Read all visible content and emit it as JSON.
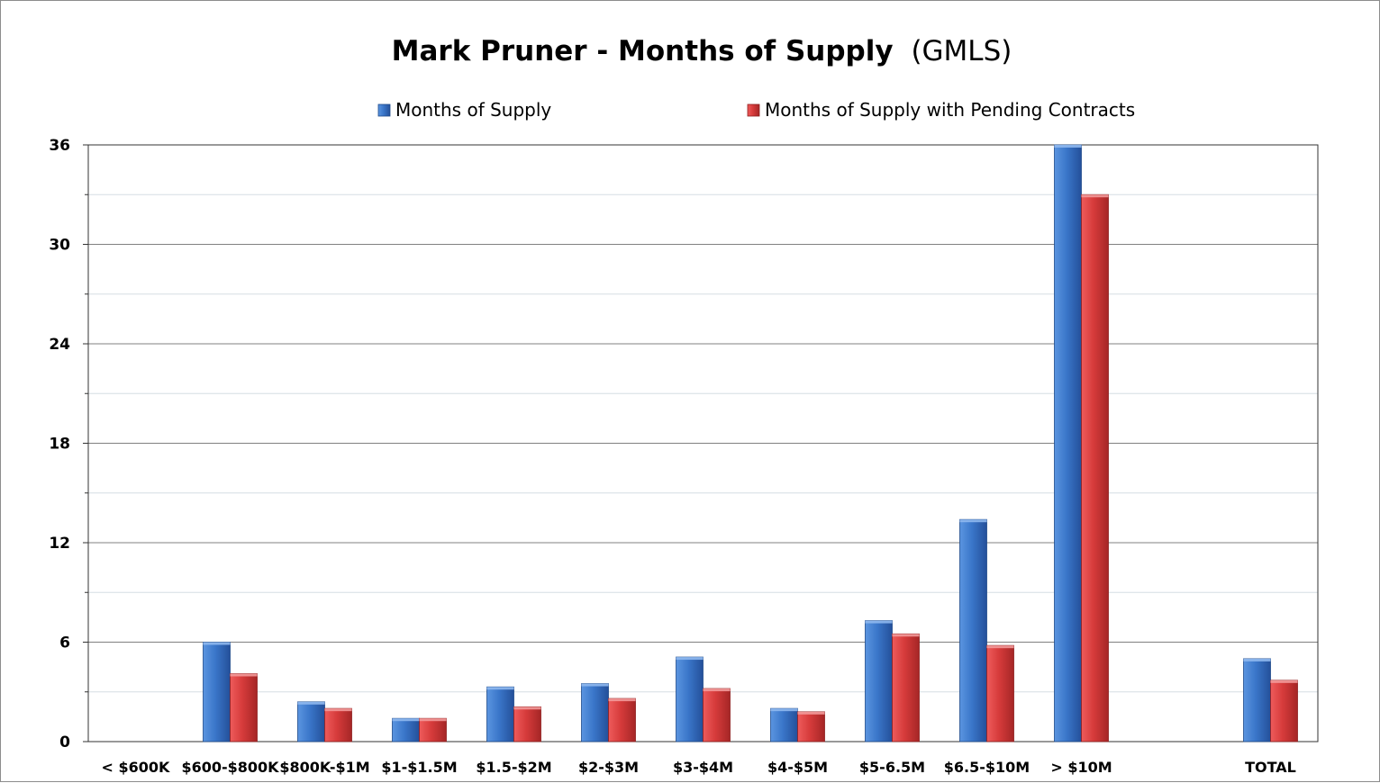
{
  "chart_data": {
    "type": "bar",
    "title": "Mark Pruner - Months of Supply",
    "title_suffix": "(GMLS)",
    "xlabel": "",
    "ylabel": "",
    "categories": [
      "< $600K",
      "$600-$800K",
      "$800K-$1M",
      "$1-$1.5M",
      "$1.5-$2M",
      "$2-$3M",
      "$3-$4M",
      "$4-$5M",
      "$5-6.5M",
      "$6.5-$10M",
      "> $10M",
      "",
      "TOTAL"
    ],
    "series": [
      {
        "name": "Months of Supply",
        "color": "#3a76c9",
        "values": [
          0,
          6.0,
          2.4,
          1.4,
          3.3,
          3.5,
          5.1,
          2.0,
          7.3,
          13.4,
          36,
          null,
          5.0
        ]
      },
      {
        "name": "Months of Supply with Pending Contracts",
        "color": "#d63b3b",
        "values": [
          0,
          4.1,
          2.0,
          1.4,
          2.1,
          2.6,
          3.2,
          1.8,
          6.5,
          5.8,
          33,
          null,
          3.7
        ]
      }
    ],
    "ylim": [
      0,
      36
    ],
    "yticks": [
      0,
      6,
      12,
      18,
      24,
      30,
      36
    ],
    "grid": true,
    "legend_position": "top"
  }
}
